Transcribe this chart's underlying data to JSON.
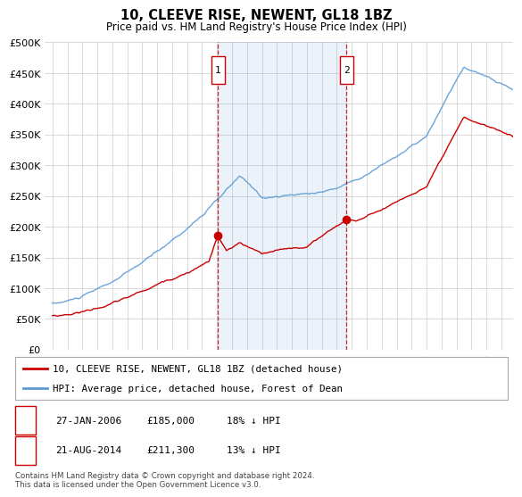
{
  "title": "10, CLEEVE RISE, NEWENT, GL18 1BZ",
  "subtitle": "Price paid vs. HM Land Registry's House Price Index (HPI)",
  "legend_line1": "10, CLEEVE RISE, NEWENT, GL18 1BZ (detached house)",
  "legend_line2": "HPI: Average price, detached house, Forest of Dean",
  "footnote1": "Contains HM Land Registry data © Crown copyright and database right 2024.",
  "footnote2": "This data is licensed under the Open Government Licence v3.0.",
  "sale1_label": "1",
  "sale1_date": "27-JAN-2006",
  "sale1_price": 185000,
  "sale1_year": 2006.07,
  "sale2_label": "2",
  "sale2_date": "21-AUG-2014",
  "sale2_price": 211300,
  "sale2_year": 2014.64,
  "red_color": "#cc0000",
  "blue_color": "#5b9bd5",
  "box_color": "#cc0000",
  "background_color": "#ffffff",
  "grid_color": "#cccccc",
  "ylim": [
    0,
    500000
  ],
  "yticks": [
    0,
    50000,
    100000,
    150000,
    200000,
    250000,
    300000,
    350000,
    400000,
    450000,
    500000
  ],
  "ytick_labels": [
    "£0",
    "£50K",
    "£100K",
    "£150K",
    "£200K",
    "£250K",
    "£300K",
    "£350K",
    "£400K",
    "£450K",
    "£500K"
  ],
  "xlim_start": 1994.5,
  "xlim_end": 2025.8,
  "xticks": [
    1995,
    1996,
    1997,
    1998,
    1999,
    2000,
    2001,
    2002,
    2003,
    2004,
    2005,
    2006,
    2007,
    2008,
    2009,
    2010,
    2011,
    2012,
    2013,
    2014,
    2015,
    2016,
    2017,
    2018,
    2019,
    2020,
    2021,
    2022,
    2023,
    2024,
    2025
  ]
}
